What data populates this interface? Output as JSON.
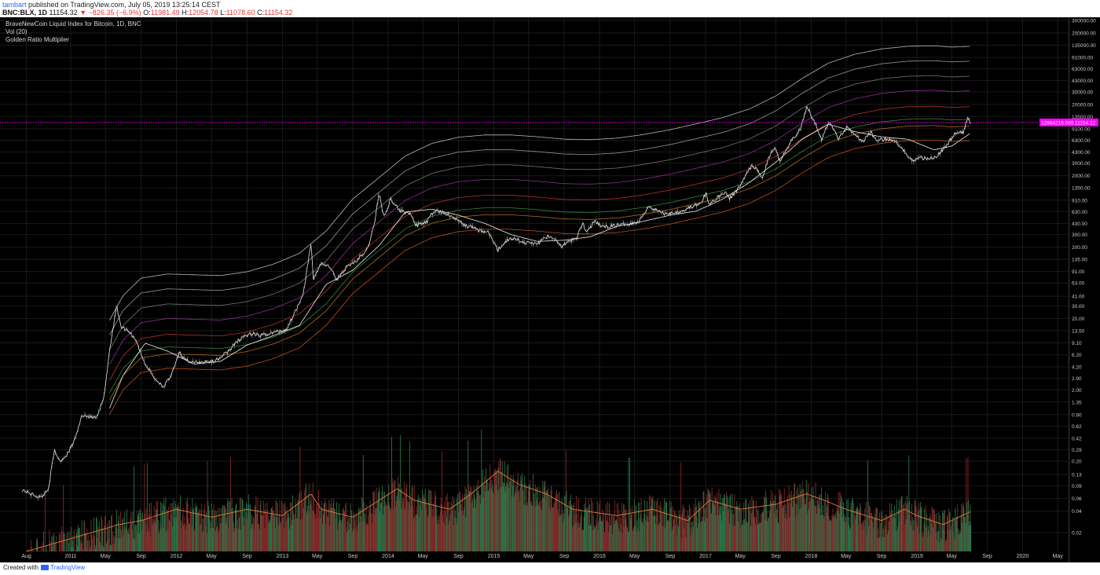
{
  "header": {
    "author": "tambart",
    "published_text": "published on TradingView.com, July 05, 2019 13:25:14 CEST",
    "symbol": "BNC:BLX, 1D",
    "last": "11154.32",
    "change": "▼ −826.35 (−6.9%)",
    "o_label": "O:",
    "o_value": "11981.49",
    "h_label": "H:",
    "h_value": "12054.78",
    "l_label": "L:",
    "l_value": "11078.60",
    "c_label": "C:",
    "c_value": "11154.32"
  },
  "legend": {
    "title": "BraveNewCoin Liquid Index for Bitcoin, 1D, BNC",
    "volume": "Vol (20)",
    "indicator": "Golden Ratio Multiplier"
  },
  "footer": {
    "created_with": "Created with",
    "brand": "TradingView"
  },
  "price_marker": {
    "left_label": "12994216.065",
    "right_label": "11154.32",
    "color": "#ff00ff"
  },
  "colors": {
    "background": "#000000",
    "axis_text": "#c8c8c8",
    "grid": "#1a1a1a",
    "price": "#e6e6e6",
    "volume_up": "#2e7d4f",
    "volume_down": "#8e2b2b",
    "volume_ma": "#e07a3a",
    "band_low": "#e06a2a",
    "band_high": "#cfcfcf"
  },
  "chart_data": {
    "type": "line",
    "scale": "log",
    "x_tick_labels": [
      "Aug",
      "2011",
      "May",
      "Sep",
      "2012",
      "May",
      "Sep",
      "2013",
      "May",
      "Sep",
      "2014",
      "May",
      "Sep",
      "2015",
      "May",
      "Sep",
      "2016",
      "May",
      "Sep",
      "2017",
      "May",
      "Sep",
      "2018",
      "May",
      "Sep",
      "2019",
      "May",
      "Sep",
      "2020",
      "May"
    ],
    "x_tick_dates": [
      "2010-08-01",
      "2011-01-01",
      "2011-05-01",
      "2011-09-01",
      "2012-01-01",
      "2012-05-01",
      "2012-09-01",
      "2013-01-01",
      "2013-05-01",
      "2013-09-01",
      "2014-01-01",
      "2014-05-01",
      "2014-09-01",
      "2015-01-01",
      "2015-05-01",
      "2015-09-01",
      "2016-01-01",
      "2016-05-01",
      "2016-09-01",
      "2017-01-01",
      "2017-05-01",
      "2017-09-01",
      "2018-01-01",
      "2018-05-01",
      "2018-09-01",
      "2019-01-01",
      "2019-05-01",
      "2019-09-01",
      "2020-01-01",
      "2020-05-01"
    ],
    "y_tick_labels": [
      "300000.00",
      "200000.00",
      "135000.00",
      "91000.00",
      "63000.00",
      "43000.00",
      "30000.00",
      "20000.00",
      "13500.00",
      "9100.00",
      "6300.00",
      "4300.00",
      "3000.00",
      "2000.00",
      "1350.00",
      "910.00",
      "630.00",
      "430.00",
      "300.00",
      "200.00",
      "135.00",
      "91.00",
      "63.00",
      "41.00",
      "30.00",
      "20.00",
      "13.50",
      "9.10",
      "6.20",
      "4.20",
      "2.90",
      "2.00",
      "1.35",
      "0.90",
      "0.62",
      "0.42",
      "0.29",
      "0.20",
      "0.13",
      "0.09",
      "0.06",
      "0.04",
      "0.02"
    ],
    "y_ticks": [
      300000,
      200000,
      135000,
      91000,
      63000,
      43000,
      30000,
      20000,
      13500,
      9100,
      6300,
      4300,
      3000,
      2000,
      1350,
      910,
      630,
      430,
      300,
      200,
      135,
      91,
      63,
      41,
      30,
      20,
      13.5,
      9.1,
      6.2,
      4.2,
      2.9,
      2.0,
      1.35,
      0.9,
      0.62,
      0.42,
      0.29,
      0.2,
      0.13,
      0.09,
      0.06,
      0.04,
      0.02
    ],
    "price_series": {
      "name": "BraveNewCoin Liquid Index for Bitcoin",
      "points": [
        [
          "2010-07-18",
          0.08
        ],
        [
          "2010-08-15",
          0.07
        ],
        [
          "2010-09-20",
          0.062
        ],
        [
          "2010-10-15",
          0.08
        ],
        [
          "2010-11-06",
          0.28
        ],
        [
          "2010-11-25",
          0.2
        ],
        [
          "2010-12-20",
          0.25
        ],
        [
          "2011-01-15",
          0.4
        ],
        [
          "2011-02-10",
          0.9
        ],
        [
          "2011-03-01",
          0.85
        ],
        [
          "2011-04-01",
          0.8
        ],
        [
          "2011-04-25",
          1.5
        ],
        [
          "2011-05-15",
          7
        ],
        [
          "2011-06-08",
          30
        ],
        [
          "2011-06-25",
          15
        ],
        [
          "2011-07-20",
          13.5
        ],
        [
          "2011-08-15",
          10
        ],
        [
          "2011-09-10",
          5
        ],
        [
          "2011-10-15",
          3
        ],
        [
          "2011-11-18",
          2.2
        ],
        [
          "2011-12-15",
          3.2
        ],
        [
          "2012-01-10",
          6.5
        ],
        [
          "2012-02-20",
          4.8
        ],
        [
          "2012-04-01",
          4.9
        ],
        [
          "2012-05-15",
          5.1
        ],
        [
          "2012-06-20",
          6.5
        ],
        [
          "2012-08-15",
          11
        ],
        [
          "2012-09-15",
          12
        ],
        [
          "2012-10-20",
          11.5
        ],
        [
          "2012-12-01",
          12.7
        ],
        [
          "2013-01-15",
          14
        ],
        [
          "2013-02-20",
          28
        ],
        [
          "2013-03-15",
          47
        ],
        [
          "2013-04-10",
          230
        ],
        [
          "2013-04-17",
          70
        ],
        [
          "2013-05-15",
          120
        ],
        [
          "2013-06-20",
          100
        ],
        [
          "2013-07-05",
          68
        ],
        [
          "2013-08-10",
          105
        ],
        [
          "2013-09-15",
          130
        ],
        [
          "2013-10-20",
          180
        ],
        [
          "2013-11-15",
          420
        ],
        [
          "2013-11-30",
          1150
        ],
        [
          "2013-12-18",
          520
        ],
        [
          "2014-01-10",
          950
        ],
        [
          "2014-02-10",
          650
        ],
        [
          "2014-03-15",
          600
        ],
        [
          "2014-04-10",
          400
        ],
        [
          "2014-05-15",
          450
        ],
        [
          "2014-06-10",
          650
        ],
        [
          "2014-07-15",
          600
        ],
        [
          "2014-08-20",
          500
        ],
        [
          "2014-09-25",
          400
        ],
        [
          "2014-10-20",
          380
        ],
        [
          "2014-11-10",
          340
        ],
        [
          "2014-12-15",
          320
        ],
        [
          "2015-01-14",
          180
        ],
        [
          "2015-02-15",
          250
        ],
        [
          "2015-03-15",
          270
        ],
        [
          "2015-04-15",
          230
        ],
        [
          "2015-06-01",
          225
        ],
        [
          "2015-07-10",
          290
        ],
        [
          "2015-08-24",
          205
        ],
        [
          "2015-09-15",
          235
        ],
        [
          "2015-10-15",
          270
        ],
        [
          "2015-11-04",
          450
        ],
        [
          "2015-11-15",
          320
        ],
        [
          "2015-12-15",
          450
        ],
        [
          "2016-01-15",
          380
        ],
        [
          "2016-02-15",
          400
        ],
        [
          "2016-04-01",
          420
        ],
        [
          "2016-05-15",
          450
        ],
        [
          "2016-06-17",
          750
        ],
        [
          "2016-07-15",
          660
        ],
        [
          "2016-08-15",
          580
        ],
        [
          "2016-09-15",
          610
        ],
        [
          "2016-10-15",
          650
        ],
        [
          "2016-11-15",
          740
        ],
        [
          "2016-12-15",
          800
        ],
        [
          "2017-01-04",
          1150
        ],
        [
          "2017-01-12",
          780
        ],
        [
          "2017-02-20",
          1050
        ],
        [
          "2017-03-10",
          1200
        ],
        [
          "2017-03-25",
          950
        ],
        [
          "2017-04-20",
          1250
        ],
        [
          "2017-05-20",
          2000
        ],
        [
          "2017-06-12",
          2900
        ],
        [
          "2017-07-16",
          1900
        ],
        [
          "2017-08-15",
          4300
        ],
        [
          "2017-09-01",
          4900
        ],
        [
          "2017-09-15",
          3200
        ],
        [
          "2017-10-20",
          6000
        ],
        [
          "2017-11-10",
          7200
        ],
        [
          "2017-11-28",
          10000
        ],
        [
          "2017-12-17",
          19500
        ],
        [
          "2018-01-01",
          14000
        ],
        [
          "2018-01-17",
          10500
        ],
        [
          "2018-02-06",
          6500
        ],
        [
          "2018-03-05",
          11500
        ],
        [
          "2018-04-06",
          6600
        ],
        [
          "2018-05-05",
          9800
        ],
        [
          "2018-06-29",
          5900
        ],
        [
          "2018-07-25",
          8400
        ],
        [
          "2018-08-14",
          6100
        ],
        [
          "2018-09-15",
          6500
        ],
        [
          "2018-10-15",
          6400
        ],
        [
          "2018-11-20",
          4400
        ],
        [
          "2018-12-15",
          3200
        ],
        [
          "2019-01-15",
          3600
        ],
        [
          "2019-02-07",
          3400
        ],
        [
          "2019-03-15",
          3900
        ],
        [
          "2019-04-10",
          5200
        ],
        [
          "2019-05-15",
          8000
        ],
        [
          "2019-06-10",
          8000
        ],
        [
          "2019-06-26",
          13000
        ],
        [
          "2019-07-05",
          11154.32
        ]
      ]
    },
    "bands": {
      "name": "Golden Ratio Multiplier",
      "base_points": [
        [
          "2011-05-15",
          0.9
        ],
        [
          "2011-07-01",
          2.0
        ],
        [
          "2011-09-01",
          3.5
        ],
        [
          "2011-12-01",
          4.0
        ],
        [
          "2012-03-01",
          3.9
        ],
        [
          "2012-06-01",
          3.8
        ],
        [
          "2012-09-01",
          4.3
        ],
        [
          "2012-12-01",
          5.5
        ],
        [
          "2013-03-01",
          7.8
        ],
        [
          "2013-06-01",
          16
        ],
        [
          "2013-09-01",
          45
        ],
        [
          "2013-12-01",
          90
        ],
        [
          "2014-03-01",
          180
        ],
        [
          "2014-06-01",
          270
        ],
        [
          "2014-09-01",
          330
        ],
        [
          "2014-12-01",
          355
        ],
        [
          "2015-03-01",
          355
        ],
        [
          "2015-06-01",
          335
        ],
        [
          "2015-09-01",
          310
        ],
        [
          "2015-12-01",
          305
        ],
        [
          "2016-03-01",
          320
        ],
        [
          "2016-06-01",
          360
        ],
        [
          "2016-09-01",
          420
        ],
        [
          "2016-12-01",
          510
        ],
        [
          "2017-03-01",
          620
        ],
        [
          "2017-06-01",
          820
        ],
        [
          "2017-09-01",
          1250
        ],
        [
          "2017-12-01",
          2200
        ],
        [
          "2018-03-01",
          3600
        ],
        [
          "2018-06-01",
          4800
        ],
        [
          "2018-09-01",
          5700
        ],
        [
          "2018-12-01",
          6200
        ],
        [
          "2019-03-01",
          6300
        ],
        [
          "2019-05-01",
          6050
        ],
        [
          "2019-07-05",
          6200
        ]
      ],
      "multipliers": [
        1,
        1.6,
        2,
        3,
        5,
        8,
        13,
        21
      ],
      "ma_points": [
        [
          "2011-05-15",
          1.1
        ],
        [
          "2011-07-01",
          3.2
        ],
        [
          "2011-09-15",
          9
        ],
        [
          "2011-12-01",
          7
        ],
        [
          "2012-03-01",
          4.6
        ],
        [
          "2012-06-01",
          5.0
        ],
        [
          "2012-09-01",
          8.5
        ],
        [
          "2012-12-01",
          11.5
        ],
        [
          "2013-03-01",
          16
        ],
        [
          "2013-06-01",
          60
        ],
        [
          "2013-09-01",
          95
        ],
        [
          "2013-12-01",
          210
        ],
        [
          "2014-03-01",
          620
        ],
        [
          "2014-06-01",
          680
        ],
        [
          "2014-09-01",
          560
        ],
        [
          "2014-12-01",
          430
        ],
        [
          "2015-03-01",
          300
        ],
        [
          "2015-06-01",
          240
        ],
        [
          "2015-09-01",
          250
        ],
        [
          "2015-12-01",
          280
        ],
        [
          "2016-03-01",
          390
        ],
        [
          "2016-06-01",
          460
        ],
        [
          "2016-09-01",
          560
        ],
        [
          "2016-12-01",
          640
        ],
        [
          "2017-03-01",
          940
        ],
        [
          "2017-06-01",
          1600
        ],
        [
          "2017-09-01",
          3100
        ],
        [
          "2017-12-01",
          6500
        ],
        [
          "2018-03-01",
          10500
        ],
        [
          "2018-06-01",
          8300
        ],
        [
          "2018-09-01",
          7000
        ],
        [
          "2018-12-01",
          6500
        ],
        [
          "2019-03-01",
          4600
        ],
        [
          "2019-05-01",
          5200
        ],
        [
          "2019-07-05",
          7900
        ]
      ]
    },
    "volume": {
      "name": "Vol (20)",
      "ma_points": [
        [
          "2010-08-01",
          0.003
        ],
        [
          "2011-02-01",
          0.006
        ],
        [
          "2011-06-15",
          0.01
        ],
        [
          "2011-09-01",
          0.012
        ],
        [
          "2012-01-01",
          0.02
        ],
        [
          "2012-05-01",
          0.014
        ],
        [
          "2012-09-01",
          0.02
        ],
        [
          "2013-01-01",
          0.015
        ],
        [
          "2013-04-10",
          0.04
        ],
        [
          "2013-05-15",
          0.02
        ],
        [
          "2013-09-01",
          0.014
        ],
        [
          "2013-12-01",
          0.03
        ],
        [
          "2014-02-01",
          0.05
        ],
        [
          "2014-04-01",
          0.03
        ],
        [
          "2014-08-01",
          0.02
        ],
        [
          "2014-10-15",
          0.04
        ],
        [
          "2015-01-15",
          0.11
        ],
        [
          "2015-04-01",
          0.06
        ],
        [
          "2015-07-01",
          0.04
        ],
        [
          "2015-10-01",
          0.02
        ],
        [
          "2016-03-01",
          0.015
        ],
        [
          "2016-07-01",
          0.02
        ],
        [
          "2016-11-01",
          0.012
        ],
        [
          "2017-01-15",
          0.03
        ],
        [
          "2017-05-01",
          0.02
        ],
        [
          "2017-09-01",
          0.025
        ],
        [
          "2017-12-15",
          0.04
        ],
        [
          "2018-02-15",
          0.03
        ],
        [
          "2018-05-01",
          0.02
        ],
        [
          "2018-09-01",
          0.012
        ],
        [
          "2018-11-20",
          0.02
        ],
        [
          "2019-01-01",
          0.015
        ],
        [
          "2019-04-01",
          0.01
        ],
        [
          "2019-07-05",
          0.018
        ]
      ]
    }
  }
}
